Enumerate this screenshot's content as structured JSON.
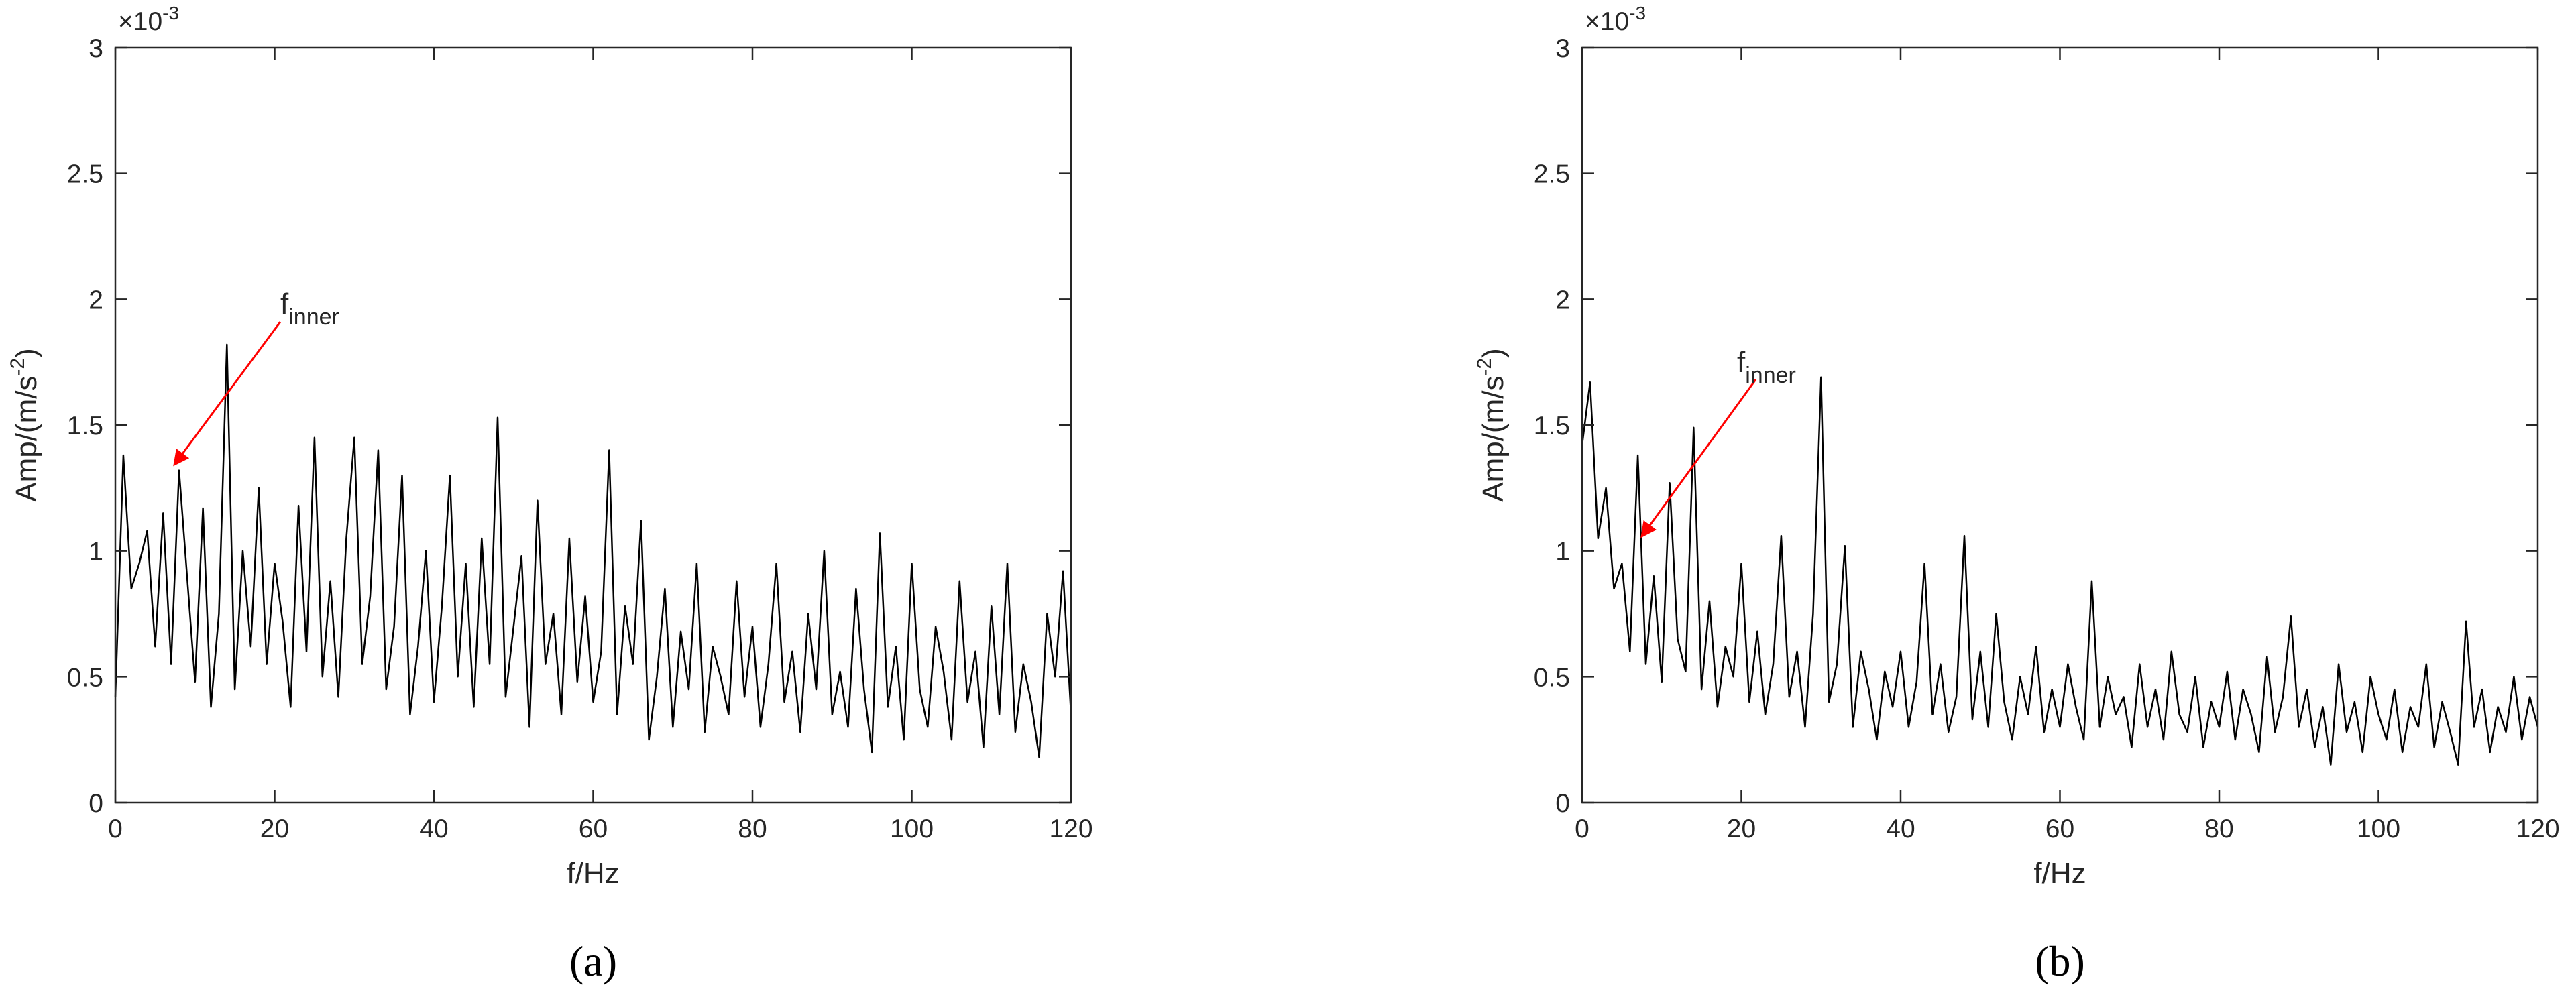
{
  "chart_data": [
    {
      "type": "line",
      "panel_label": "(a)",
      "xlabel": "f/Hz",
      "ylabel": {
        "text": "Amp/(m/s",
        "superscript": "-2",
        "suffix": ")"
      },
      "y_exponent": {
        "text": "×10",
        "superscript": "-3"
      },
      "annotation": {
        "text": "f",
        "subscript": "inner"
      },
      "color": "#000000",
      "arrow_color": "#ff0000",
      "xlim": [
        0,
        120
      ],
      "xticks": [
        0,
        20,
        40,
        60,
        80,
        100,
        120
      ],
      "ylim": [
        0,
        3
      ],
      "yticks": [
        0,
        0.5,
        1,
        1.5,
        2,
        2.5,
        3
      ],
      "x": [
        0,
        1,
        2,
        3,
        4,
        5,
        6,
        7,
        8,
        9,
        10,
        11,
        12,
        13,
        14,
        15,
        16,
        17,
        18,
        19,
        20,
        21,
        22,
        23,
        24,
        25,
        26,
        27,
        28,
        29,
        30,
        31,
        32,
        33,
        34,
        35,
        36,
        37,
        38,
        39,
        40,
        41,
        42,
        43,
        44,
        45,
        46,
        47,
        48,
        49,
        50,
        51,
        52,
        53,
        54,
        55,
        56,
        57,
        58,
        59,
        60,
        61,
        62,
        63,
        64,
        65,
        66,
        67,
        68,
        69,
        70,
        71,
        72,
        73,
        74,
        75,
        76,
        77,
        78,
        79,
        80,
        81,
        82,
        83,
        84,
        85,
        86,
        87,
        88,
        89,
        90,
        91,
        92,
        93,
        94,
        95,
        96,
        97,
        98,
        99,
        100,
        101,
        102,
        103,
        104,
        105,
        106,
        107,
        108,
        109,
        110,
        111,
        112,
        113,
        114,
        115,
        116,
        117,
        118,
        119,
        120
      ],
      "values": [
        0.42,
        1.38,
        0.85,
        0.95,
        1.08,
        0.62,
        1.15,
        0.55,
        1.32,
        0.9,
        0.48,
        1.17,
        0.38,
        0.75,
        1.82,
        0.45,
        1.0,
        0.62,
        1.25,
        0.55,
        0.95,
        0.72,
        0.38,
        1.18,
        0.6,
        1.45,
        0.5,
        0.88,
        0.42,
        1.05,
        1.45,
        0.55,
        0.82,
        1.4,
        0.45,
        0.7,
        1.3,
        0.35,
        0.62,
        1.0,
        0.4,
        0.78,
        1.3,
        0.5,
        0.95,
        0.38,
        1.05,
        0.55,
        1.53,
        0.42,
        0.7,
        0.98,
        0.3,
        1.2,
        0.55,
        0.75,
        0.35,
        1.05,
        0.48,
        0.82,
        0.4,
        0.6,
        1.4,
        0.35,
        0.78,
        0.55,
        1.12,
        0.25,
        0.5,
        0.85,
        0.3,
        0.68,
        0.45,
        0.95,
        0.28,
        0.62,
        0.5,
        0.35,
        0.88,
        0.42,
        0.7,
        0.3,
        0.55,
        0.95,
        0.4,
        0.6,
        0.28,
        0.75,
        0.45,
        1.0,
        0.35,
        0.52,
        0.3,
        0.85,
        0.45,
        0.2,
        1.07,
        0.38,
        0.62,
        0.25,
        0.95,
        0.45,
        0.3,
        0.7,
        0.52,
        0.25,
        0.88,
        0.4,
        0.6,
        0.22,
        0.78,
        0.35,
        0.95,
        0.28,
        0.55,
        0.4,
        0.18,
        0.75,
        0.5,
        0.92,
        0.35
      ]
    },
    {
      "type": "line",
      "panel_label": "(b)",
      "xlabel": "f/Hz",
      "ylabel": {
        "text": "Amp/(m/s",
        "superscript": "-2",
        "suffix": ")"
      },
      "y_exponent": {
        "text": "×10",
        "superscript": "-3"
      },
      "annotation": {
        "text": "f",
        "subscript": "inner"
      },
      "color": "#000000",
      "arrow_color": "#ff0000",
      "xlim": [
        0,
        120
      ],
      "xticks": [
        0,
        20,
        40,
        60,
        80,
        100,
        120
      ],
      "ylim": [
        0,
        3
      ],
      "yticks": [
        0,
        0.5,
        1,
        1.5,
        2,
        2.5,
        3
      ],
      "x": [
        0,
        1,
        2,
        3,
        4,
        5,
        6,
        7,
        8,
        9,
        10,
        11,
        12,
        13,
        14,
        15,
        16,
        17,
        18,
        19,
        20,
        21,
        22,
        23,
        24,
        25,
        26,
        27,
        28,
        29,
        30,
        31,
        32,
        33,
        34,
        35,
        36,
        37,
        38,
        39,
        40,
        41,
        42,
        43,
        44,
        45,
        46,
        47,
        48,
        49,
        50,
        51,
        52,
        53,
        54,
        55,
        56,
        57,
        58,
        59,
        60,
        61,
        62,
        63,
        64,
        65,
        66,
        67,
        68,
        69,
        70,
        71,
        72,
        73,
        74,
        75,
        76,
        77,
        78,
        79,
        80,
        81,
        82,
        83,
        84,
        85,
        86,
        87,
        88,
        89,
        90,
        91,
        92,
        93,
        94,
        95,
        96,
        97,
        98,
        99,
        100,
        101,
        102,
        103,
        104,
        105,
        106,
        107,
        108,
        109,
        110,
        111,
        112,
        113,
        114,
        115,
        116,
        117,
        118,
        119,
        120
      ],
      "values": [
        1.42,
        1.67,
        1.05,
        1.25,
        0.85,
        0.95,
        0.6,
        1.38,
        0.55,
        0.9,
        0.48,
        1.27,
        0.65,
        0.52,
        1.49,
        0.45,
        0.8,
        0.38,
        0.62,
        0.5,
        0.95,
        0.4,
        0.68,
        0.35,
        0.55,
        1.06,
        0.42,
        0.6,
        0.3,
        0.75,
        1.69,
        0.4,
        0.55,
        1.02,
        0.3,
        0.6,
        0.45,
        0.25,
        0.52,
        0.38,
        0.6,
        0.3,
        0.48,
        0.95,
        0.35,
        0.55,
        0.28,
        0.42,
        1.06,
        0.33,
        0.6,
        0.3,
        0.75,
        0.4,
        0.25,
        0.5,
        0.35,
        0.62,
        0.28,
        0.45,
        0.3,
        0.55,
        0.38,
        0.25,
        0.88,
        0.3,
        0.5,
        0.35,
        0.42,
        0.22,
        0.55,
        0.3,
        0.45,
        0.25,
        0.6,
        0.35,
        0.28,
        0.5,
        0.22,
        0.4,
        0.3,
        0.52,
        0.25,
        0.45,
        0.35,
        0.2,
        0.58,
        0.28,
        0.42,
        0.74,
        0.3,
        0.45,
        0.22,
        0.38,
        0.15,
        0.55,
        0.28,
        0.4,
        0.2,
        0.5,
        0.35,
        0.25,
        0.45,
        0.2,
        0.38,
        0.3,
        0.55,
        0.22,
        0.4,
        0.28,
        0.15,
        0.72,
        0.3,
        0.45,
        0.2,
        0.38,
        0.28,
        0.5,
        0.25,
        0.42,
        0.3
      ]
    }
  ]
}
